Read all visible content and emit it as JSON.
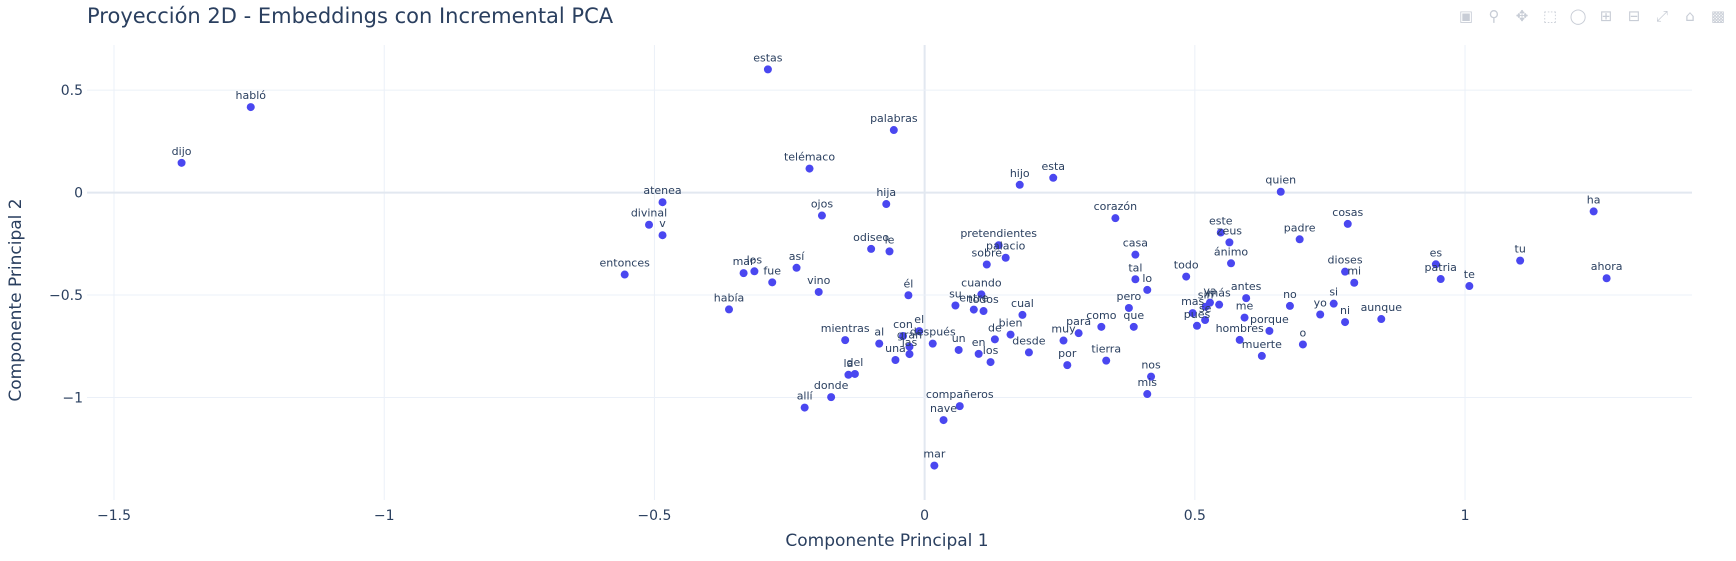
{
  "modebar": {
    "camera_icon": "camera-icon",
    "zoom_icon": "zoom-icon",
    "pan_icon": "pan-icon",
    "box_select_icon": "box-select-icon",
    "lasso_icon": "lasso-icon",
    "zoom_in_icon": "zoom-in-icon",
    "zoom_out_icon": "zoom-out-icon",
    "autoscale_icon": "autoscale-icon",
    "reset_icon": "home-icon",
    "plotly_icon": "plotly-logo-icon"
  },
  "chart_data": {
    "type": "scatter",
    "title": "Proyección 2D - Embeddings con Incremental PCA",
    "xlabel": "Componente Principal 1",
    "ylabel": "Componente Principal 2",
    "xlim": [
      -1.55,
      1.42
    ],
    "ylim": [
      -1.5,
      0.72
    ],
    "xticks": [
      -1.5,
      -1,
      -0.5,
      0,
      0.5,
      1
    ],
    "xtick_labels": [
      "−1.5",
      "−1",
      "−0.5",
      "0",
      "0.5",
      "1"
    ],
    "yticks": [
      0.5,
      0,
      -0.5,
      -1
    ],
    "ytick_labels": [
      "0.5",
      "0",
      "−0.5",
      "−1"
    ],
    "grid": true,
    "marker_color": "#4a47f0",
    "series": [
      {
        "points": [
          {
            "label": "habló",
            "x": -1.247,
            "y": 0.417
          },
          {
            "label": "dijo",
            "x": -1.375,
            "y": 0.145
          },
          {
            "label": "estas",
            "x": -0.29,
            "y": 0.601
          },
          {
            "label": "palabras",
            "x": -0.057,
            "y": 0.305
          },
          {
            "label": "telémaco",
            "x": -0.213,
            "y": 0.117
          },
          {
            "label": "atenea",
            "x": -0.485,
            "y": -0.047
          },
          {
            "label": "divinal",
            "x": -0.51,
            "y": -0.157
          },
          {
            "label": "v",
            "x": -0.485,
            "y": -0.208
          },
          {
            "label": "ojos",
            "x": -0.19,
            "y": -0.112
          },
          {
            "label": "hija",
            "x": -0.071,
            "y": -0.056
          },
          {
            "label": "hijo",
            "x": 0.176,
            "y": 0.038
          },
          {
            "label": "esta",
            "x": 0.238,
            "y": 0.072
          },
          {
            "label": "quien",
            "x": 0.659,
            "y": 0.004
          },
          {
            "label": "ha",
            "x": 1.238,
            "y": -0.092
          },
          {
            "label": "corazón",
            "x": 0.353,
            "y": -0.125
          },
          {
            "label": "cosas",
            "x": 0.783,
            "y": -0.153
          },
          {
            "label": "este",
            "x": 0.548,
            "y": -0.195
          },
          {
            "label": "zeus",
            "x": 0.564,
            "y": -0.243
          },
          {
            "label": "padre",
            "x": 0.694,
            "y": -0.228
          },
          {
            "label": "odiseo",
            "x": -0.099,
            "y": -0.275
          },
          {
            "label": "le",
            "x": -0.065,
            "y": -0.287
          },
          {
            "label": "pretendientes",
            "x": 0.137,
            "y": -0.257
          },
          {
            "label": "palacio",
            "x": 0.15,
            "y": -0.318
          },
          {
            "label": "sobre",
            "x": 0.115,
            "y": -0.351
          },
          {
            "label": "casa",
            "x": 0.39,
            "y": -0.303
          },
          {
            "label": "ánimo",
            "x": 0.567,
            "y": -0.345
          },
          {
            "label": "tu",
            "x": 1.102,
            "y": -0.332
          },
          {
            "label": "es",
            "x": 0.946,
            "y": -0.35
          },
          {
            "label": "ahora",
            "x": 1.262,
            "y": -0.418
          },
          {
            "label": "entonces",
            "x": -0.555,
            "y": -0.4
          },
          {
            "label": "mar",
            "x": -0.335,
            "y": -0.393
          },
          {
            "label": "los",
            "x": -0.315,
            "y": -0.384
          },
          {
            "label": "así",
            "x": -0.237,
            "y": -0.367
          },
          {
            "label": "fue",
            "x": -0.282,
            "y": -0.438
          },
          {
            "label": "vino",
            "x": -0.196,
            "y": -0.485
          },
          {
            "label": "todo",
            "x": 0.484,
            "y": -0.41
          },
          {
            "label": "tal",
            "x": 0.39,
            "y": -0.423
          },
          {
            "label": "lo",
            "x": 0.412,
            "y": -0.475
          },
          {
            "label": "dioses",
            "x": 0.778,
            "y": -0.386
          },
          {
            "label": "mi",
            "x": 0.795,
            "y": -0.44
          },
          {
            "label": "patria",
            "x": 0.955,
            "y": -0.422
          },
          {
            "label": "te",
            "x": 1.008,
            "y": -0.456
          },
          {
            "label": "había",
            "x": -0.362,
            "y": -0.57
          },
          {
            "label": "él",
            "x": -0.03,
            "y": -0.501
          },
          {
            "label": "cuando",
            "x": 0.105,
            "y": -0.497
          },
          {
            "label": "su",
            "x": 0.057,
            "y": -0.551
          },
          {
            "label": "entre",
            "x": 0.091,
            "y": -0.571
          },
          {
            "label": "todos",
            "x": 0.109,
            "y": -0.578
          },
          {
            "label": "cual",
            "x": 0.181,
            "y": -0.597
          },
          {
            "label": "pero",
            "x": 0.378,
            "y": -0.563
          },
          {
            "label": "ya",
            "x": 0.528,
            "y": -0.537
          },
          {
            "label": "mas",
            "x": 0.496,
            "y": -0.588
          },
          {
            "label": "sin",
            "x": 0.52,
            "y": -0.557
          },
          {
            "label": "más",
            "x": 0.545,
            "y": -0.547
          },
          {
            "label": "antes",
            "x": 0.595,
            "y": -0.515
          },
          {
            "label": "no",
            "x": 0.676,
            "y": -0.553
          },
          {
            "label": "si",
            "x": 0.757,
            "y": -0.542
          },
          {
            "label": "yo",
            "x": 0.732,
            "y": -0.595
          },
          {
            "label": "ni",
            "x": 0.778,
            "y": -0.632
          },
          {
            "label": "aunque",
            "x": 0.845,
            "y": -0.617
          },
          {
            "label": "pues",
            "x": 0.504,
            "y": -0.65
          },
          {
            "label": "se",
            "x": 0.519,
            "y": -0.622
          },
          {
            "label": "me",
            "x": 0.592,
            "y": -0.61
          },
          {
            "label": "porque",
            "x": 0.638,
            "y": -0.675
          },
          {
            "label": "hombres",
            "x": 0.583,
            "y": -0.719
          },
          {
            "label": "o",
            "x": 0.7,
            "y": -0.741
          },
          {
            "label": "muerte",
            "x": 0.624,
            "y": -0.797
          },
          {
            "label": "como",
            "x": 0.327,
            "y": -0.655
          },
          {
            "label": "que",
            "x": 0.387,
            "y": -0.655
          },
          {
            "label": "para",
            "x": 0.285,
            "y": -0.686
          },
          {
            "label": "muy",
            "x": 0.257,
            "y": -0.722
          },
          {
            "label": "bien",
            "x": 0.159,
            "y": -0.693
          },
          {
            "label": "desde",
            "x": 0.193,
            "y": -0.78
          },
          {
            "label": "de",
            "x": 0.13,
            "y": -0.716
          },
          {
            "label": "en",
            "x": 0.1,
            "y": -0.787
          },
          {
            "label": "los",
            "x": 0.122,
            "y": -0.827
          },
          {
            "label": "un",
            "x": 0.063,
            "y": -0.768
          },
          {
            "label": "por",
            "x": 0.264,
            "y": -0.842
          },
          {
            "label": "tierra",
            "x": 0.336,
            "y": -0.82
          },
          {
            "label": "mientras",
            "x": -0.147,
            "y": -0.72
          },
          {
            "label": "al",
            "x": -0.084,
            "y": -0.737
          },
          {
            "label": "con",
            "x": -0.04,
            "y": -0.7
          },
          {
            "label": "el",
            "x": -0.01,
            "y": -0.676
          },
          {
            "label": "después",
            "x": 0.015,
            "y": -0.737
          },
          {
            "label": "gran",
            "x": -0.028,
            "y": -0.752
          },
          {
            "label": "las",
            "x": -0.028,
            "y": -0.788
          },
          {
            "label": "una",
            "x": -0.054,
            "y": -0.817
          },
          {
            "label": "la",
            "x": -0.141,
            "y": -0.889
          },
          {
            "label": "del",
            "x": -0.129,
            "y": -0.885
          },
          {
            "label": "nos",
            "x": 0.419,
            "y": -0.898
          },
          {
            "label": "mis",
            "x": 0.412,
            "y": -0.983
          },
          {
            "label": "donde",
            "x": -0.173,
            "y": -0.998
          },
          {
            "label": "allí",
            "x": -0.222,
            "y": -1.049
          },
          {
            "label": "compañeros",
            "x": 0.065,
            "y": -1.042
          },
          {
            "label": "nave",
            "x": 0.035,
            "y": -1.11
          },
          {
            "label": "mar",
            "x": 0.018,
            "y": -1.332
          }
        ]
      }
    ]
  }
}
